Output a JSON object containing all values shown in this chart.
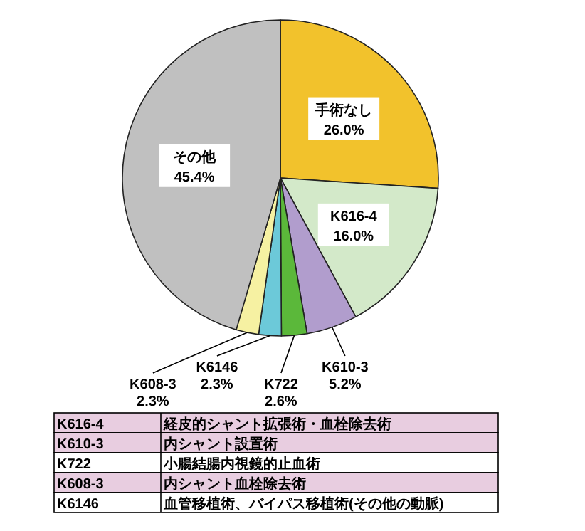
{
  "chart_data": {
    "type": "pie",
    "categories": [
      "手術なし",
      "K616-4",
      "K610-3",
      "K722",
      "K6146",
      "K608-3",
      "その他"
    ],
    "values": [
      26.0,
      16.0,
      5.2,
      2.6,
      2.3,
      2.3,
      45.4
    ],
    "value_labels": [
      "26.0%",
      "16.0%",
      "5.2%",
      "2.6%",
      "2.3%",
      "2.3%",
      "45.4%"
    ],
    "colors": [
      "#f2c22c",
      "#d3e9c9",
      "#b19dcd",
      "#5bb83a",
      "#6cc9d9",
      "#f6f1a2",
      "#c0c0c0"
    ],
    "annotations": [
      "K616-4",
      "経皮的シャント拡張術・血栓除去術",
      "K610-3",
      "内シャント設置術",
      "K722",
      "小腸結腸内視鏡的止血術",
      "K608-3",
      "内シャント血栓除去術",
      "K6146",
      "血管移植術、バイパス移植術(その他の動脈)"
    ]
  }
}
